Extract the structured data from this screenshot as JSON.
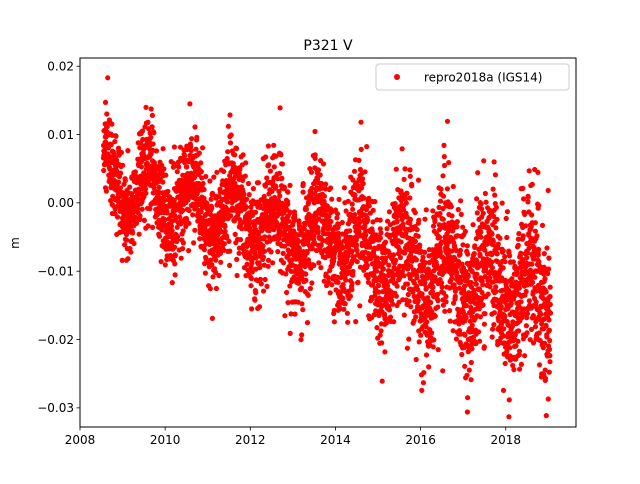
{
  "chart_data": {
    "type": "scatter",
    "title": "P321 V",
    "xlabel": "",
    "ylabel": "m",
    "xlim": [
      2008.0,
      2019.65
    ],
    "ylim": [
      -0.0328,
      0.0212
    ],
    "x_ticks": [
      2008,
      2010,
      2012,
      2014,
      2016,
      2018
    ],
    "x_tick_labels": [
      "2008",
      "2010",
      "2012",
      "2014",
      "2016",
      "2018"
    ],
    "y_ticks": [
      0.02,
      0.01,
      0.0,
      -0.01,
      -0.02,
      -0.03
    ],
    "y_tick_labels": [
      "0.02",
      "0.01",
      "0.00",
      "−0.01",
      "−0.02",
      "−0.03"
    ],
    "grid": false,
    "legend_position": "top-right",
    "series": [
      {
        "name": "repro2018a (IGS14)",
        "color": "#ff0000",
        "marker": "circle",
        "time_range": [
          2008.55,
          2019.05
        ],
        "trend_start": 0.003,
        "trend_end": -0.014,
        "seasonal_amplitude": 0.004,
        "scatter_sd": 0.0045,
        "approx_point_count": 3800,
        "notable_points": [
          {
            "x": 2008.65,
            "y": 0.0183
          },
          {
            "x": 2008.6,
            "y": 0.0147
          },
          {
            "x": 2009.7,
            "y": 0.0128
          },
          {
            "x": 2012.7,
            "y": 0.0139
          },
          {
            "x": 2014.6,
            "y": 0.0118
          },
          {
            "x": 2017.1,
            "y": -0.0306
          },
          {
            "x": 2018.55,
            "y": 0.0047
          },
          {
            "x": 2019.0,
            "y": -0.0287
          }
        ]
      }
    ]
  }
}
